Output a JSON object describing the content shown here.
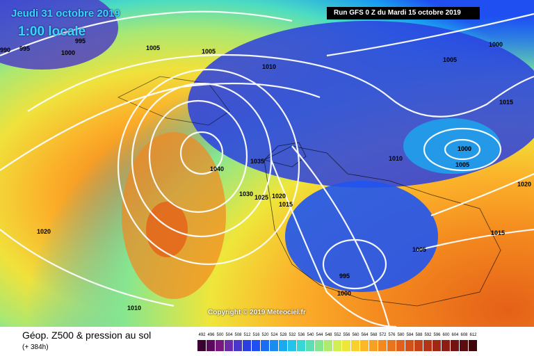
{
  "header": {
    "date": "Jeudi 31 octobre 2019",
    "time": "1:00 locale",
    "run": "Run GFS 0 Z du Mardi 15 octobre 2019"
  },
  "copyright": "Copyright © 2019 Meteociel.fr",
  "footer": {
    "title": "Géop. Z500 & pression au sol",
    "hours": "(+ 384h)"
  },
  "scale": {
    "labels": [
      "492",
      "496",
      "500",
      "504",
      "508",
      "512",
      "516",
      "520",
      "524",
      "528",
      "532",
      "536",
      "540",
      "544",
      "548",
      "552",
      "556",
      "560",
      "564",
      "568",
      "572",
      "576",
      "580",
      "584",
      "588",
      "592",
      "596",
      "600",
      "604",
      "608",
      "612"
    ],
    "colors": [
      "#3a0032",
      "#5a0a5a",
      "#7a1680",
      "#6b2aa8",
      "#4a36c8",
      "#2a3fe0",
      "#1f4ff0",
      "#1c6cf0",
      "#1a8cf0",
      "#1aaaf0",
      "#22c4ea",
      "#38d6d4",
      "#5ce0b0",
      "#86e690",
      "#aeea70",
      "#d2ee50",
      "#efe63a",
      "#fad02e",
      "#fbb828",
      "#f8a024",
      "#f28a20",
      "#ea741e",
      "#e0601c",
      "#d2501a",
      "#c44218",
      "#b43418",
      "#a22816",
      "#8e1e14",
      "#741412",
      "#5a0c0e",
      "#40060a"
    ]
  },
  "isobar_labels": [
    "995",
    "990",
    "1000",
    "995",
    "1005",
    "1005",
    "1010",
    "1000",
    "1005",
    "1000",
    "1015",
    "1040",
    "1035",
    "1030",
    "1025",
    "1020",
    "1015",
    "1010",
    "1000",
    "1005",
    "1020",
    "1015",
    "1005",
    "1020",
    "995",
    "1000",
    "1010"
  ]
}
